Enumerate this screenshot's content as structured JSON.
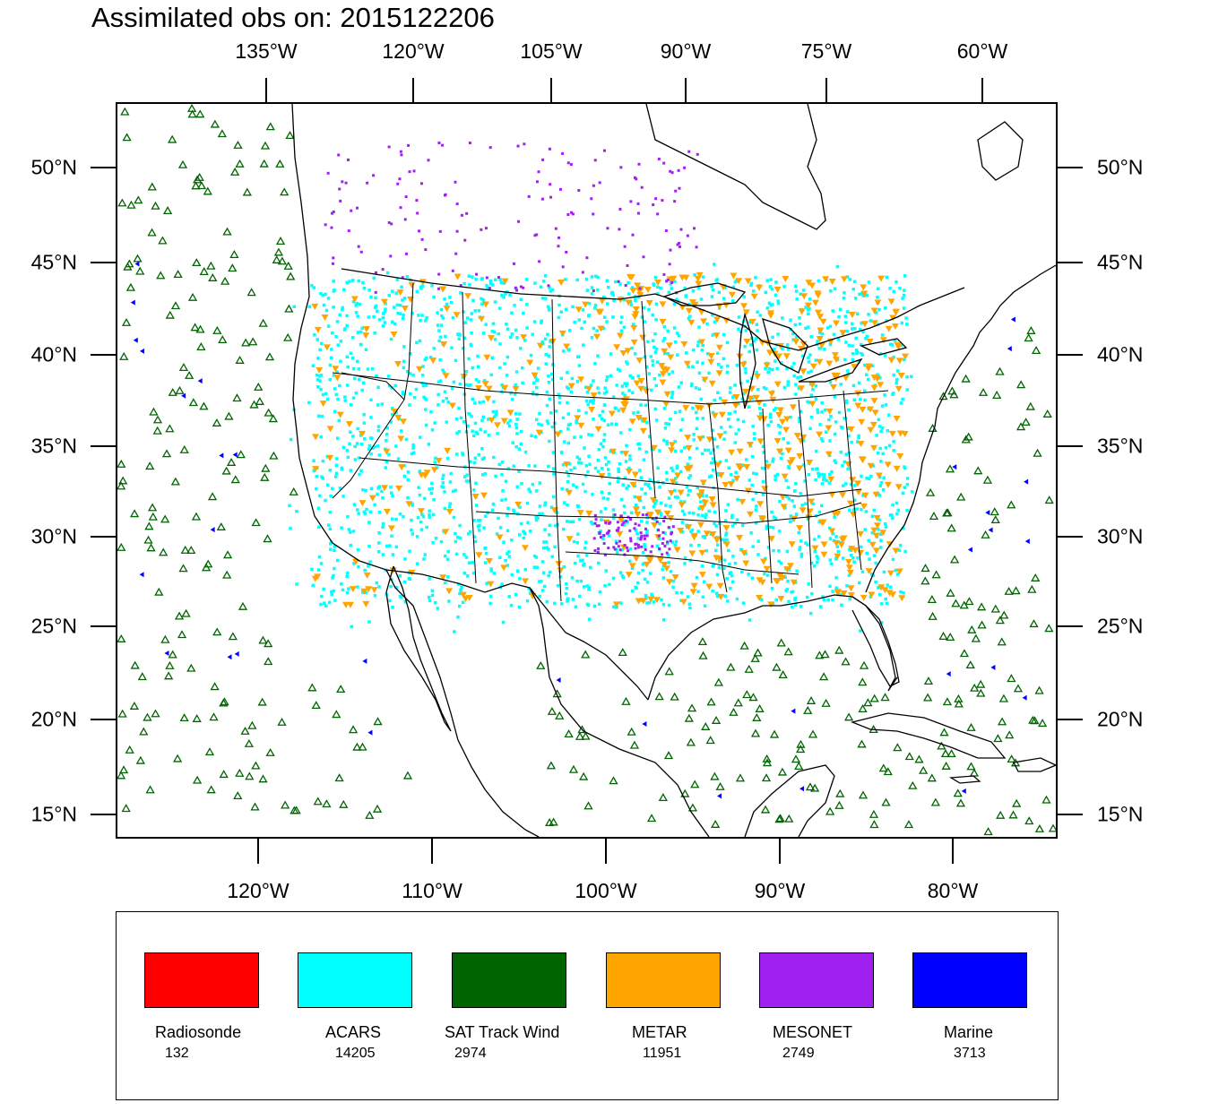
{
  "title": "Assimilated obs on: 2015122206",
  "top_lon_labels": [
    "135°W",
    "120°W",
    "105°W",
    "90°W",
    "75°W",
    "60°W"
  ],
  "bottom_lon_labels": [
    "120°W",
    "110°W",
    "100°W",
    "90°W",
    "80°W"
  ],
  "lat_labels": [
    "50°N",
    "45°N",
    "40°N",
    "35°N",
    "30°N",
    "25°N",
    "20°N",
    "15°N"
  ],
  "legend": [
    {
      "name": "Radiosonde",
      "count": "132",
      "color": "#ff0000"
    },
    {
      "name": "ACARS",
      "count": "14205",
      "color": "#00ffff"
    },
    {
      "name": "SAT Track Wind",
      "count": "2974",
      "color": "#006400"
    },
    {
      "name": "METAR",
      "count": "11951",
      "color": "#ffa500"
    },
    {
      "name": "MESONET",
      "count": "2749",
      "color": "#a020f0"
    },
    {
      "name": "Marine",
      "count": "3713",
      "color": "#0000ff"
    }
  ]
}
